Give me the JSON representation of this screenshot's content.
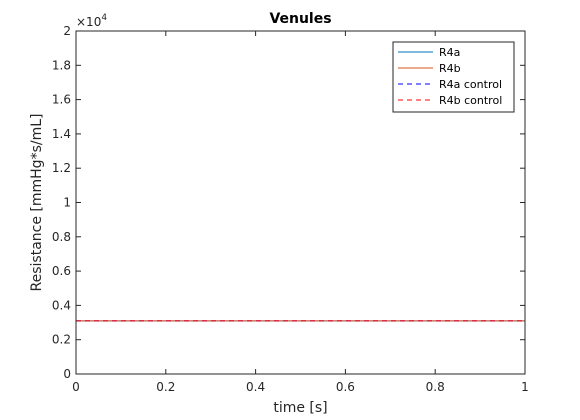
{
  "chart_data": {
    "type": "line",
    "title": "Venules",
    "xlabel": "time [s]",
    "ylabel": "Resistance [mmHg*s/mL]",
    "xlim": [
      0,
      1
    ],
    "ylim": [
      0,
      20000
    ],
    "y_exponent_label": "×10",
    "y_exponent_power": "4",
    "xticks": [
      0,
      0.2,
      0.4,
      0.6,
      0.8,
      1
    ],
    "xtick_labels": [
      "0",
      "0.2",
      "0.4",
      "0.6",
      "0.8",
      "1"
    ],
    "yticks": [
      0,
      2000,
      4000,
      6000,
      8000,
      10000,
      12000,
      14000,
      16000,
      18000,
      20000
    ],
    "ytick_labels": [
      "0",
      "0.2",
      "0.4",
      "0.6",
      "0.8",
      "1",
      "1.2",
      "1.4",
      "1.6",
      "1.8",
      "2"
    ],
    "grid": false,
    "legend_position": "top-right",
    "series": [
      {
        "name": "R4a",
        "x": [
          0,
          1
        ],
        "y": [
          3100,
          3100
        ],
        "color": "#0072BD",
        "style": "solid"
      },
      {
        "name": "R4b",
        "x": [
          0,
          1
        ],
        "y": [
          3100,
          3100
        ],
        "color": "#D95319",
        "style": "solid"
      },
      {
        "name": "R4a control",
        "x": [
          0,
          1
        ],
        "y": [
          3100,
          3100
        ],
        "color": "#0000FF",
        "style": "dashed"
      },
      {
        "name": "R4b control",
        "x": [
          0,
          1
        ],
        "y": [
          3100,
          3100
        ],
        "color": "#FF0000",
        "style": "dashed"
      }
    ]
  }
}
